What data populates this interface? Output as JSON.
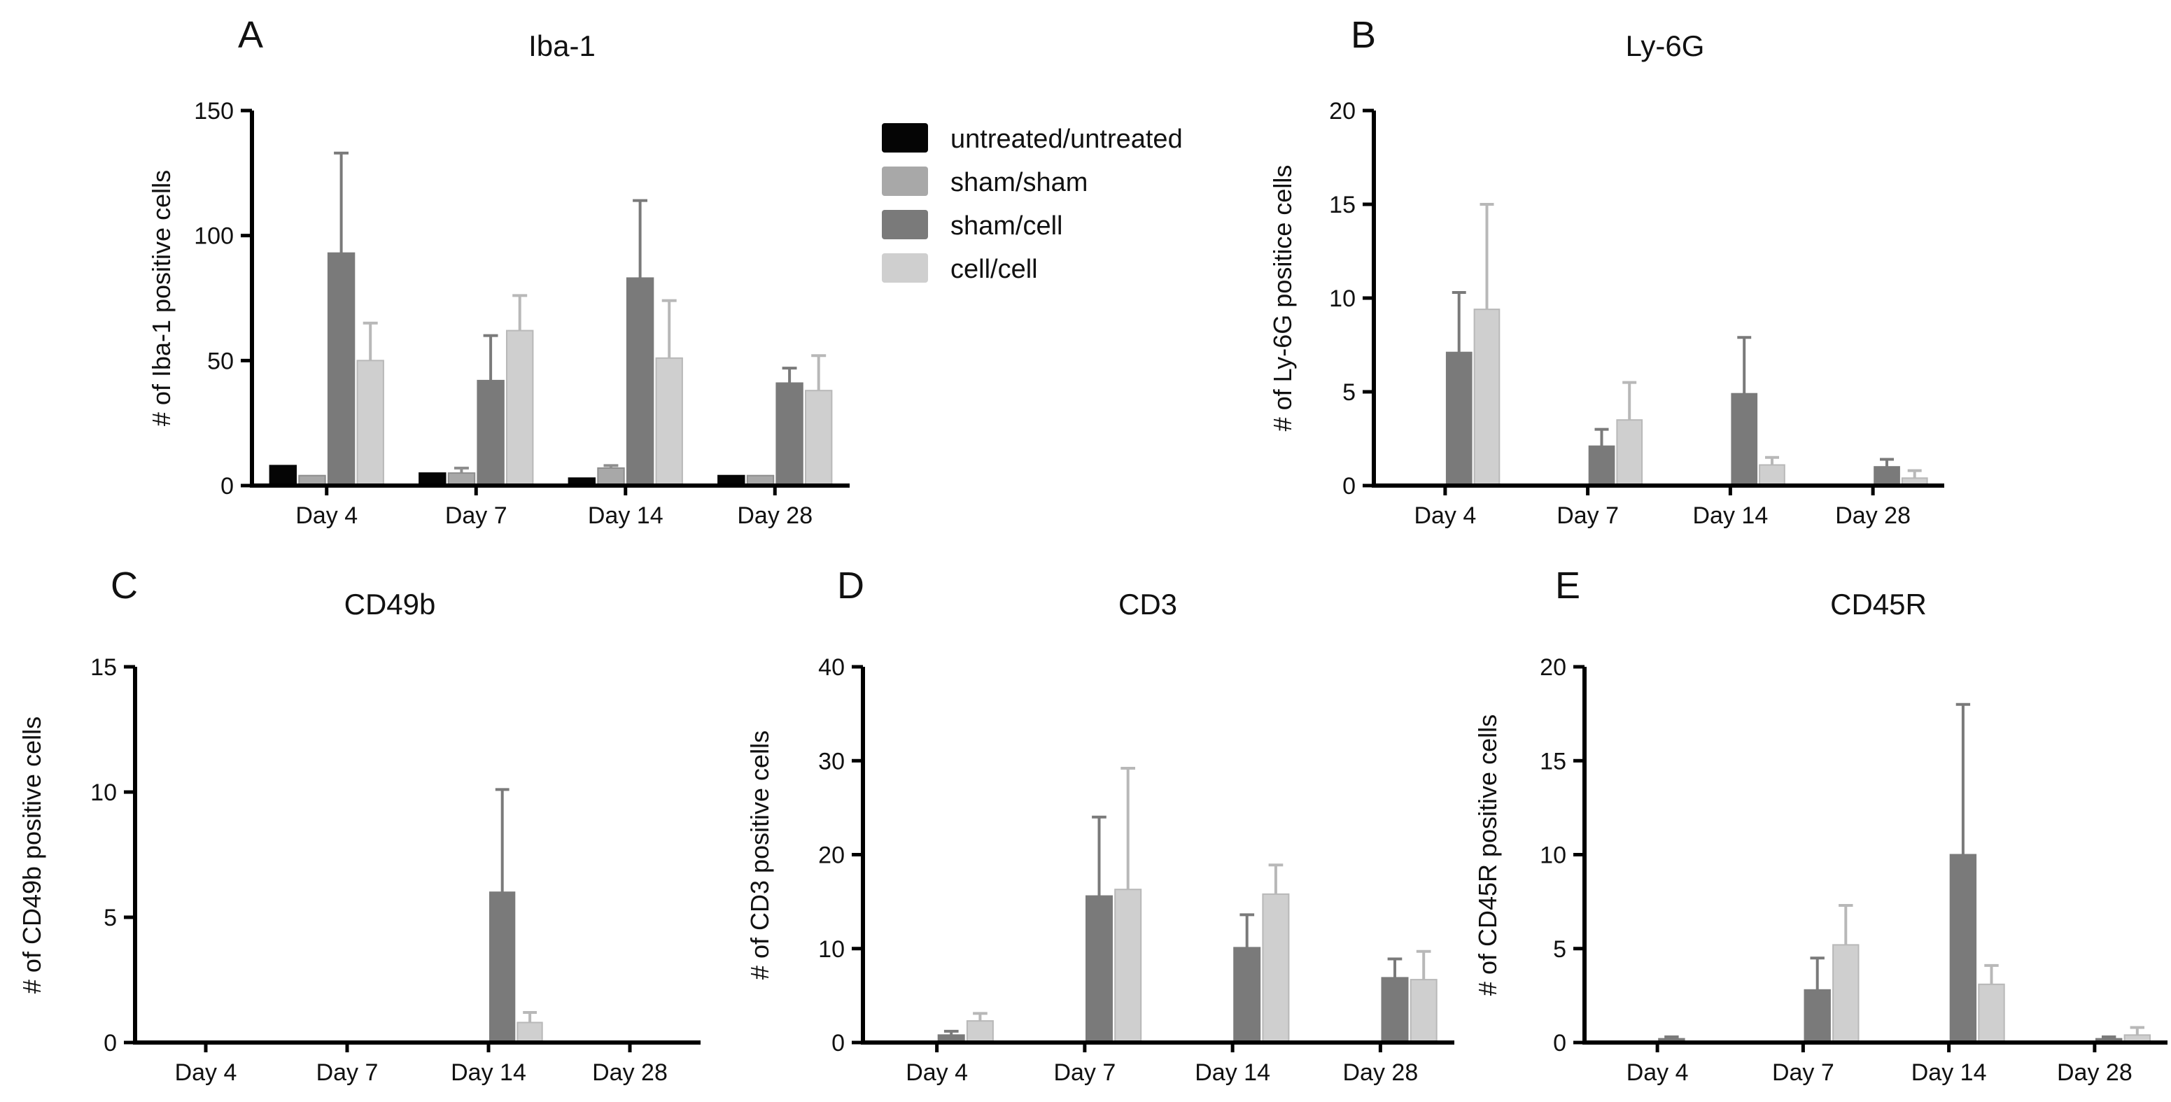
{
  "legend": {
    "entries": [
      {
        "name": "untreated/untreated",
        "color": "#050505"
      },
      {
        "name": "sham/sham",
        "color": "#a8a8a8"
      },
      {
        "name": "sham/cell",
        "color": "#7a7a7a"
      },
      {
        "name": "cell/cell",
        "color": "#cfcfcf"
      }
    ]
  },
  "chart_data": [
    {
      "panel": "A",
      "type": "bar",
      "title": "Iba-1",
      "xlabel": "",
      "ylabel": "# of Iba-1 positive cells",
      "ylim": [
        0,
        150
      ],
      "yticks": [
        0,
        50,
        100,
        150
      ],
      "categories": [
        "Day 4",
        "Day 7",
        "Day 14",
        "Day 28"
      ],
      "series": [
        {
          "name": "untreated/untreated",
          "values": [
            8,
            5,
            3,
            4
          ],
          "errors": [
            0,
            0,
            0,
            0
          ]
        },
        {
          "name": "sham/sham",
          "values": [
            4,
            5,
            7,
            4
          ],
          "errors": [
            0,
            2,
            1,
            0
          ]
        },
        {
          "name": "sham/cell",
          "values": [
            93,
            42,
            83,
            41
          ],
          "errors": [
            40,
            18,
            31,
            6
          ]
        },
        {
          "name": "cell/cell",
          "values": [
            50,
            62,
            51,
            38
          ],
          "errors": [
            15,
            14,
            23,
            14
          ]
        }
      ]
    },
    {
      "panel": "B",
      "type": "bar",
      "title": "Ly-6G",
      "xlabel": "",
      "ylabel": "# of Ly-6G positice cells",
      "ylim": [
        0,
        20
      ],
      "yticks": [
        0,
        5,
        10,
        15,
        20
      ],
      "categories": [
        "Day 4",
        "Day 7",
        "Day 14",
        "Day 28"
      ],
      "series": [
        {
          "name": "untreated/untreated",
          "values": [
            0,
            0,
            0,
            0
          ],
          "errors": [
            0,
            0,
            0,
            0
          ]
        },
        {
          "name": "sham/sham",
          "values": [
            0,
            0,
            0,
            0
          ],
          "errors": [
            0,
            0,
            0,
            0
          ]
        },
        {
          "name": "sham/cell",
          "values": [
            7.1,
            2.1,
            4.9,
            1.0
          ],
          "errors": [
            3.2,
            0.9,
            3.0,
            0.4
          ]
        },
        {
          "name": "cell/cell",
          "values": [
            9.4,
            3.5,
            1.1,
            0.4
          ],
          "errors": [
            5.6,
            2.0,
            0.4,
            0.4
          ]
        }
      ]
    },
    {
      "panel": "C",
      "type": "bar",
      "title": "CD49b",
      "xlabel": "",
      "ylabel": "# of CD49b positive cells",
      "ylim": [
        0,
        15
      ],
      "yticks": [
        0,
        5,
        10,
        15
      ],
      "categories": [
        "Day 4",
        "Day 7",
        "Day 14",
        "Day 28"
      ],
      "series": [
        {
          "name": "untreated/untreated",
          "values": [
            0,
            0,
            0,
            0
          ],
          "errors": [
            0,
            0,
            0,
            0
          ]
        },
        {
          "name": "sham/sham",
          "values": [
            0,
            0,
            0,
            0
          ],
          "errors": [
            0,
            0,
            0,
            0
          ]
        },
        {
          "name": "sham/cell",
          "values": [
            0,
            0,
            6.0,
            0
          ],
          "errors": [
            0,
            0,
            4.1,
            0
          ]
        },
        {
          "name": "cell/cell",
          "values": [
            0,
            0,
            0.8,
            0
          ],
          "errors": [
            0,
            0,
            0.4,
            0
          ]
        }
      ]
    },
    {
      "panel": "D",
      "type": "bar",
      "title": "CD3",
      "xlabel": "",
      "ylabel": "# of CD3 positive cells",
      "ylim": [
        0,
        40
      ],
      "yticks": [
        0,
        10,
        20,
        30,
        40
      ],
      "categories": [
        "Day 4",
        "Day 7",
        "Day 14",
        "Day 28"
      ],
      "series": [
        {
          "name": "untreated/untreated",
          "values": [
            0,
            0,
            0,
            0
          ],
          "errors": [
            0,
            0,
            0,
            0
          ]
        },
        {
          "name": "sham/sham",
          "values": [
            0,
            0,
            0,
            0
          ],
          "errors": [
            0,
            0,
            0,
            0
          ]
        },
        {
          "name": "sham/cell",
          "values": [
            0.8,
            15.6,
            10.1,
            6.9
          ],
          "errors": [
            0.4,
            8.4,
            3.5,
            2.0
          ]
        },
        {
          "name": "cell/cell",
          "values": [
            2.3,
            16.3,
            15.8,
            6.7
          ],
          "errors": [
            0.8,
            12.9,
            3.1,
            3.0
          ]
        }
      ]
    },
    {
      "panel": "E",
      "type": "bar",
      "title": "CD45R",
      "xlabel": "",
      "ylabel": "# of CD45R positive cells",
      "ylim": [
        0,
        20
      ],
      "yticks": [
        0,
        5,
        10,
        15,
        20
      ],
      "categories": [
        "Day 4",
        "Day 7",
        "Day 14",
        "Day 28"
      ],
      "series": [
        {
          "name": "untreated/untreated",
          "values": [
            0,
            0,
            0,
            0
          ],
          "errors": [
            0,
            0,
            0,
            0
          ]
        },
        {
          "name": "sham/sham",
          "values": [
            0,
            0,
            0,
            0
          ],
          "errors": [
            0,
            0,
            0,
            0
          ]
        },
        {
          "name": "sham/cell",
          "values": [
            0.2,
            2.8,
            10.0,
            0.2
          ],
          "errors": [
            0.1,
            1.7,
            8.0,
            0.1
          ]
        },
        {
          "name": "cell/cell",
          "values": [
            0,
            5.2,
            3.1,
            0.4
          ],
          "errors": [
            0,
            2.1,
            1.0,
            0.4
          ]
        }
      ]
    }
  ]
}
